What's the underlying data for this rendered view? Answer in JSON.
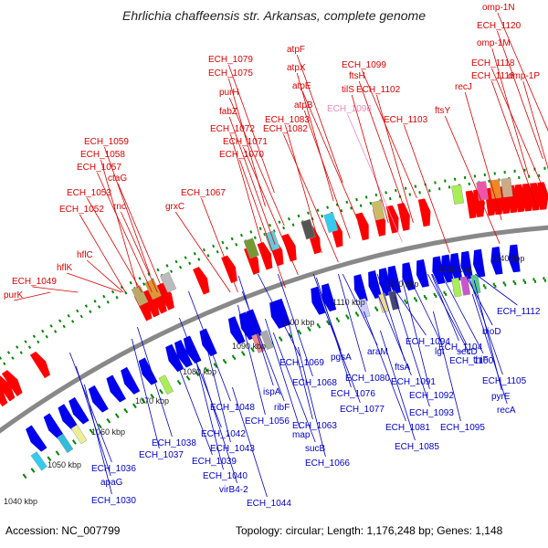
{
  "title": "Ehrlichia chaffeensis str. Arkansas, complete genome",
  "footer": {
    "accession_label": "Accession:",
    "accession": "NC_007799",
    "topology_label": "Topology:",
    "topology": "circular",
    "length_label": "Length:",
    "length": "1,176,248 bp",
    "genes_label": "Genes:",
    "genes": "1,148"
  },
  "colors": {
    "forward_label": "#dd0000",
    "reverse_label": "#0000cc",
    "trna_label": "#ee88bb",
    "backbone": "#888888",
    "forward_gene": "#ff0000",
    "reverse_gene": "#0000ee",
    "tick": "#008800"
  },
  "scale": {
    "unit": "kbp",
    "ticks": [
      "1040 kbp",
      "1050 kbp",
      "1060 kbp",
      "1070 kbp",
      "1080 kbp",
      "1090 kbp",
      "1100 kbp",
      "1110 kbp",
      "1120 kbp",
      "1130 kbp",
      "1140 kbp"
    ]
  },
  "forward_labels": [
    "purK",
    "ECH_1049",
    "hflK",
    "hflC",
    "ECH_1052",
    "ECH_1053",
    "rnc",
    "ctaG",
    "ECH_1057",
    "ECH_1058",
    "ECH_1059",
    "grxC",
    "ECH_1067",
    "ECH_1070",
    "ECH_1071",
    "ECH_1072",
    "fabZ",
    "purH",
    "ECH_1075",
    "ECH_1079",
    "ECH_1082",
    "ECH_1083",
    "atpB",
    "atpE",
    "atpX",
    "atpF",
    "ECH_1096",
    "tilS",
    "ftsH",
    "ECH_1099",
    "ECH_1102",
    "ECH_1103",
    "ftsY",
    "recJ",
    "ECH_1116",
    "ECH_1118",
    "omp-1M",
    "ECH_1120",
    "omp-1N",
    "omp-1P"
  ],
  "trna_labels": [
    "ECH_1096"
  ],
  "reverse_labels": [
    "ECH_1030",
    "apaG",
    "ECH_1036",
    "ECH_1037",
    "ECH_1038",
    "ECH_1039",
    "ECH_1040",
    "virB4-2",
    "ECH_1042",
    "ECH_1043",
    "ECH_1044",
    "ECH_1048",
    "ECH_1056",
    "ispA",
    "ribF",
    "ECH_1063",
    "map",
    "sucB",
    "ECH_1066",
    "ECH_1068",
    "ECH_1069",
    "pgsA",
    "ECH_1076",
    "ECH_1077",
    "ECH_1080",
    "araM",
    "ECH_1081",
    "ftsA",
    "ECH_1085",
    "ECH_1091",
    "ECH_1092",
    "ECH_1093",
    "ECH_1094",
    "ECH_1095",
    "lgt",
    "ECH_1100",
    "ECH_1104",
    "secD",
    "thiF",
    "bioD",
    "ECH_1105",
    "ECH_1112",
    "pyrE",
    "recA"
  ]
}
